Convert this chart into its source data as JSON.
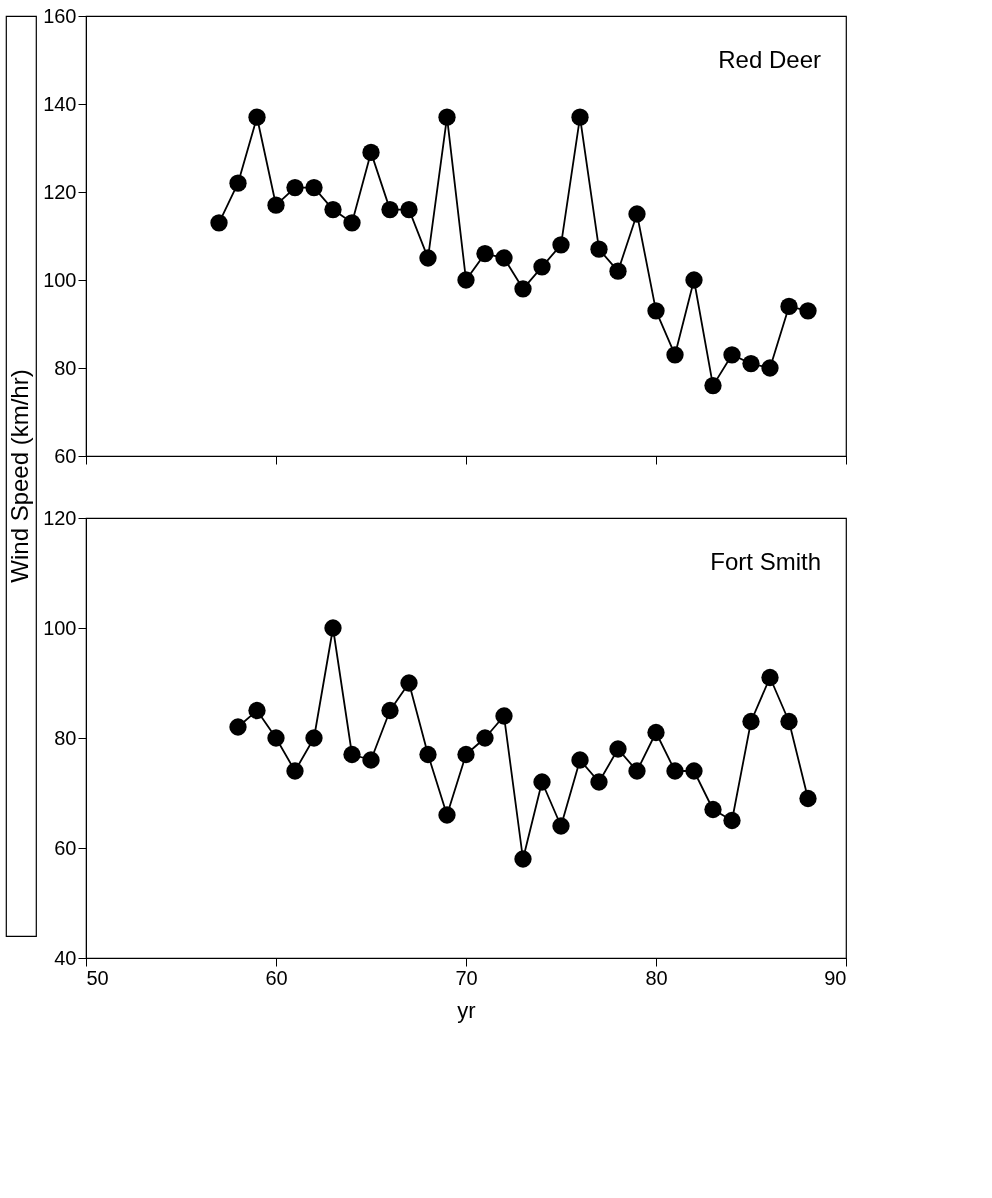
{
  "chart_data": [
    {
      "type": "line",
      "ylabel": "Wind Speed (km/hr)",
      "x": [
        57,
        58,
        59,
        60,
        61,
        62,
        63,
        64,
        65,
        66,
        67,
        68,
        69,
        70,
        71,
        72,
        73,
        74,
        75,
        76,
        77,
        78,
        79,
        80,
        81,
        82,
        83,
        84,
        85,
        86,
        87,
        88
      ],
      "series": [
        {
          "name": "Red Deer",
          "color": "#000000",
          "values": [
            113,
            122,
            137,
            117,
            121,
            121,
            116,
            113,
            129,
            116,
            116,
            105,
            137,
            100,
            106,
            105,
            98,
            103,
            108,
            137,
            107,
            102,
            115,
            93,
            83,
            100,
            76,
            83,
            81,
            80,
            94,
            93
          ]
        }
      ],
      "xlim": [
        50,
        90
      ],
      "xticks": [
        50,
        60,
        70,
        80,
        90
      ],
      "ylim": [
        60,
        160
      ],
      "yticks": [
        60,
        80,
        100,
        120,
        140,
        160
      ],
      "tick_labels": "y",
      "marker": "circle",
      "line_style": "solid",
      "grid": false
    },
    {
      "type": "line",
      "xlabel": "yr",
      "x": [
        58,
        59,
        60,
        61,
        62,
        63,
        64,
        65,
        66,
        67,
        68,
        69,
        70,
        71,
        72,
        73,
        74,
        75,
        76,
        77,
        78,
        79,
        80,
        81,
        82,
        83,
        84,
        85,
        86,
        87,
        88
      ],
      "series": [
        {
          "name": "Fort Smith",
          "color": "#000000",
          "values": [
            82,
            85,
            80,
            74,
            80,
            100,
            77,
            76,
            85,
            90,
            77,
            66,
            77,
            80,
            84,
            58,
            72,
            64,
            76,
            72,
            78,
            74,
            81,
            74,
            74,
            67,
            65,
            83,
            91,
            83,
            69
          ]
        }
      ],
      "xlim": [
        50,
        90
      ],
      "xticks": [
        50,
        60,
        70,
        80,
        90
      ],
      "ylim": [
        40,
        120
      ],
      "yticks": [
        40,
        60,
        80,
        100,
        120
      ],
      "marker": "circle",
      "line_style": "solid",
      "grid": false
    }
  ]
}
